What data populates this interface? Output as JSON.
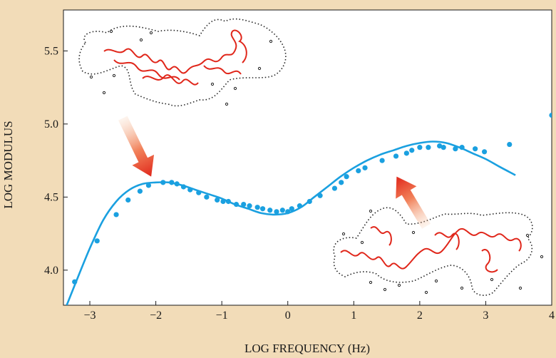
{
  "chart_data": {
    "type": "scatter",
    "title": "",
    "xlabel": "LOG FREQUENCY (Hz)",
    "ylabel": "LOG MODULUS",
    "xlim": [
      -3.4,
      4.0
    ],
    "ylim": [
      3.76,
      5.78
    ],
    "grid": false,
    "xticks": [
      -3,
      -2,
      -1,
      0,
      1,
      2,
      3,
      4
    ],
    "xtick_labels": [
      "−3",
      "−2",
      "−1",
      "0",
      "1",
      "2",
      "3",
      "4"
    ],
    "yticks": [
      4.0,
      4.5,
      5.0,
      5.5
    ],
    "ytick_labels": [
      "4.0",
      "4.5",
      "5.0",
      "5.5"
    ],
    "series": [
      {
        "kind": "points",
        "color": "#1aa0e0",
        "x": [
          -3.23,
          -2.89,
          -2.6,
          -2.42,
          -2.24,
          -2.11,
          -1.89,
          -1.76,
          -1.68,
          -1.58,
          -1.48,
          -1.35,
          -1.23,
          -1.07,
          -0.98,
          -0.9,
          -0.78,
          -0.67,
          -0.58,
          -0.46,
          -0.38,
          -0.27,
          -0.17,
          -0.08,
          0.0,
          0.06,
          0.18,
          0.33,
          0.49,
          0.71,
          0.81,
          0.89,
          1.07,
          1.17,
          1.43,
          1.64,
          1.8,
          1.88,
          2.0,
          2.13,
          2.3,
          2.36,
          2.54,
          2.64,
          2.84,
          2.98,
          3.36,
          4.0
        ],
        "y": [
          3.92,
          4.2,
          4.38,
          4.48,
          4.54,
          4.58,
          4.6,
          4.6,
          4.59,
          4.57,
          4.55,
          4.53,
          4.5,
          4.48,
          4.47,
          4.47,
          4.45,
          4.45,
          4.44,
          4.43,
          4.42,
          4.41,
          4.4,
          4.41,
          4.4,
          4.42,
          4.44,
          4.47,
          4.51,
          4.56,
          4.6,
          4.64,
          4.68,
          4.7,
          4.75,
          4.78,
          4.8,
          4.82,
          4.84,
          4.84,
          4.85,
          4.84,
          4.83,
          4.84,
          4.83,
          4.81,
          4.86,
          5.06
        ]
      },
      {
        "kind": "curve",
        "color": "#1aa0e0",
        "x": [
          -3.35,
          -3.2,
          -3.0,
          -2.8,
          -2.6,
          -2.4,
          -2.2,
          -2.0,
          -1.8,
          -1.6,
          -1.4,
          -1.2,
          -1.0,
          -0.8,
          -0.6,
          -0.4,
          -0.2,
          0.0,
          0.2,
          0.4,
          0.6,
          0.8,
          1.0,
          1.2,
          1.4,
          1.6,
          1.8,
          2.0,
          2.2,
          2.4,
          2.6,
          2.8,
          3.0,
          3.2,
          3.45
        ],
        "y": [
          3.76,
          3.93,
          4.15,
          4.34,
          4.47,
          4.55,
          4.59,
          4.6,
          4.6,
          4.58,
          4.55,
          4.52,
          4.49,
          4.45,
          4.42,
          4.39,
          4.38,
          4.39,
          4.43,
          4.5,
          4.57,
          4.64,
          4.7,
          4.75,
          4.79,
          4.82,
          4.85,
          4.87,
          4.88,
          4.87,
          4.84,
          4.8,
          4.76,
          4.71,
          4.65
        ]
      }
    ],
    "annotations": [
      {
        "kind": "arrow",
        "color": "#e0351e",
        "from": [
          -2.5,
          5.04
        ],
        "to": [
          -2.07,
          4.64
        ]
      },
      {
        "kind": "arrow",
        "color": "#e0351e",
        "from": [
          2.1,
          4.3
        ],
        "to": [
          1.65,
          4.64
        ]
      }
    ]
  }
}
